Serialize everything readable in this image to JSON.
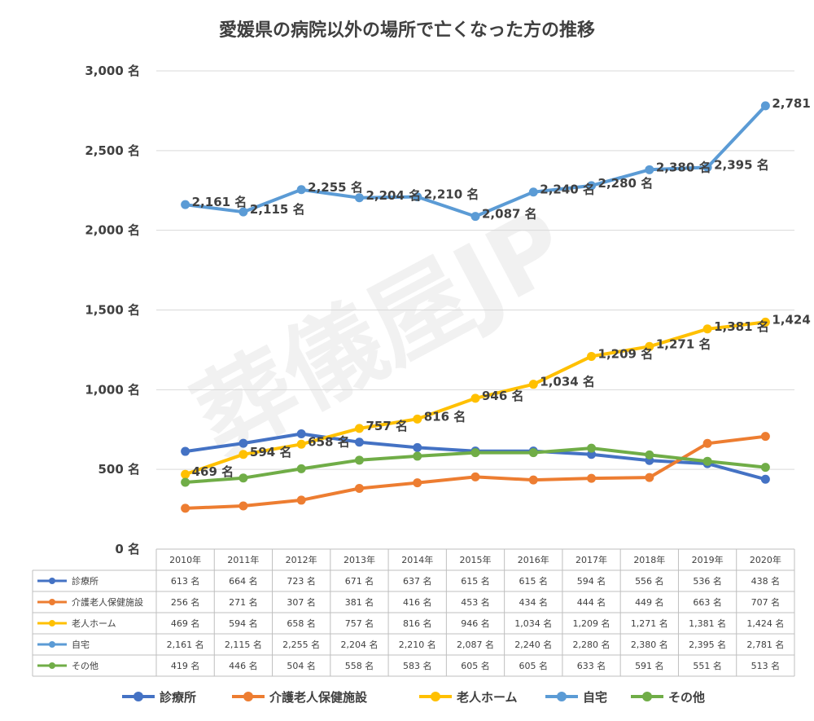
{
  "chart_data": {
    "type": "line",
    "title": "愛媛県の病院以外の場所で亡くなった方の推移",
    "watermark": "葬儀屋JP",
    "categories": [
      "2010年",
      "2011年",
      "2012年",
      "2013年",
      "2014年",
      "2015年",
      "2016年",
      "2017年",
      "2018年",
      "2019年",
      "2020年"
    ],
    "ylim": [
      0,
      3000
    ],
    "yticks": [
      0,
      500,
      1000,
      1500,
      2000,
      2500,
      3000
    ],
    "ytick_labels": [
      "0 名",
      "500 名",
      "1,000 名",
      "1,500 名",
      "2,000 名",
      "2,500 名",
      "3,000 名"
    ],
    "unit": "名",
    "grid": true,
    "legend": "bottom",
    "series": [
      {
        "name": "診療所",
        "color": "#4472c4",
        "values": [
          613,
          664,
          723,
          671,
          637,
          615,
          615,
          594,
          556,
          536,
          438
        ],
        "labels": [
          "613 名",
          "664 名",
          "723 名",
          "671 名",
          "637 名",
          "615 名",
          "615 名",
          "594 名",
          "556 名",
          "536 名",
          "438 名"
        ],
        "show_labels": false
      },
      {
        "name": "介護老人保健施設",
        "color": "#ed7d31",
        "values": [
          256,
          271,
          307,
          381,
          416,
          453,
          434,
          444,
          449,
          663,
          707
        ],
        "labels": [
          "256 名",
          "271 名",
          "307 名",
          "381 名",
          "416 名",
          "453 名",
          "434 名",
          "444 名",
          "449 名",
          "663 名",
          "707 名"
        ],
        "show_labels": false
      },
      {
        "name": "老人ホーム",
        "color": "#ffc000",
        "values": [
          469,
          594,
          658,
          757,
          816,
          946,
          1034,
          1209,
          1271,
          1381,
          1424
        ],
        "labels": [
          "469 名",
          "594 名",
          "658 名",
          "757 名",
          "816 名",
          "946 名",
          "1,034 名",
          "1,209 名",
          "1,271 名",
          "1,381 名",
          "1,424 名"
        ],
        "show_labels": true
      },
      {
        "name": "自宅",
        "color": "#5b9bd5",
        "values": [
          2161,
          2115,
          2255,
          2204,
          2210,
          2087,
          2240,
          2280,
          2380,
          2395,
          2781
        ],
        "labels": [
          "2,161 名",
          "2,115 名",
          "2,255 名",
          "2,204 名",
          "2,210 名",
          "2,087 名",
          "2,240 名",
          "2,280 名",
          "2,380 名",
          "2,395 名",
          "2,781 名"
        ],
        "show_labels": true
      },
      {
        "name": "その他",
        "color": "#70ad47",
        "values": [
          419,
          446,
          504,
          558,
          583,
          605,
          605,
          633,
          591,
          551,
          513
        ],
        "labels": [
          "419 名",
          "446 名",
          "504 名",
          "558 名",
          "583 名",
          "605 名",
          "605 名",
          "633 名",
          "591 名",
          "551 名",
          "513 名"
        ],
        "show_labels": false
      }
    ]
  }
}
